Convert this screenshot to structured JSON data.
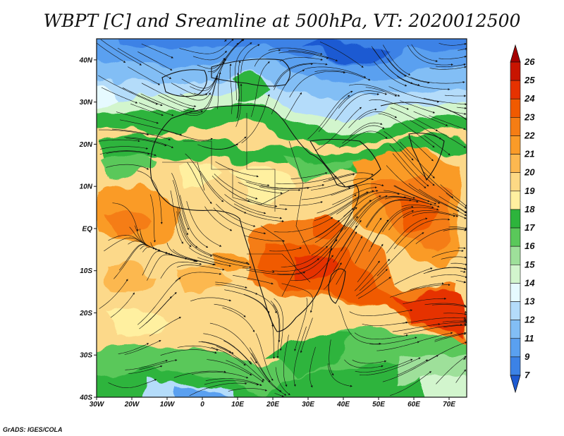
{
  "title": "WBPT [C] and Sreamline at 500hPa, VT: 2020012500",
  "credit": "GrADS: IGES/COLA",
  "map": {
    "lat_labels": [
      "40N",
      "30N",
      "20N",
      "10N",
      "EQ",
      "10S",
      "20S",
      "30S",
      "40S"
    ],
    "lon_labels": [
      "30W",
      "20W",
      "10W",
      "0",
      "10E",
      "20E",
      "30E",
      "40E",
      "50E",
      "60E",
      "70E"
    ],
    "lat_range": [
      -40,
      45
    ],
    "lon_range": [
      -30,
      75
    ]
  },
  "colorbar": {
    "labels": [
      "26",
      "25",
      "24",
      "23",
      "22",
      "21",
      "20",
      "19",
      "18",
      "17",
      "16",
      "15",
      "14",
      "13",
      "12",
      "11",
      "9",
      "7"
    ],
    "colors": [
      "#a50000",
      "#c81400",
      "#e63200",
      "#f05a00",
      "#f57d14",
      "#fa9b28",
      "#fcb850",
      "#fdd985",
      "#fff0a0",
      "#2db43c",
      "#5ac85a",
      "#9ee09a",
      "#d2f5cd",
      "#e6faff",
      "#b4dcfa",
      "#82bef5",
      "#5aa0f0",
      "#3c82e6",
      "#1e5ad2"
    ]
  }
}
